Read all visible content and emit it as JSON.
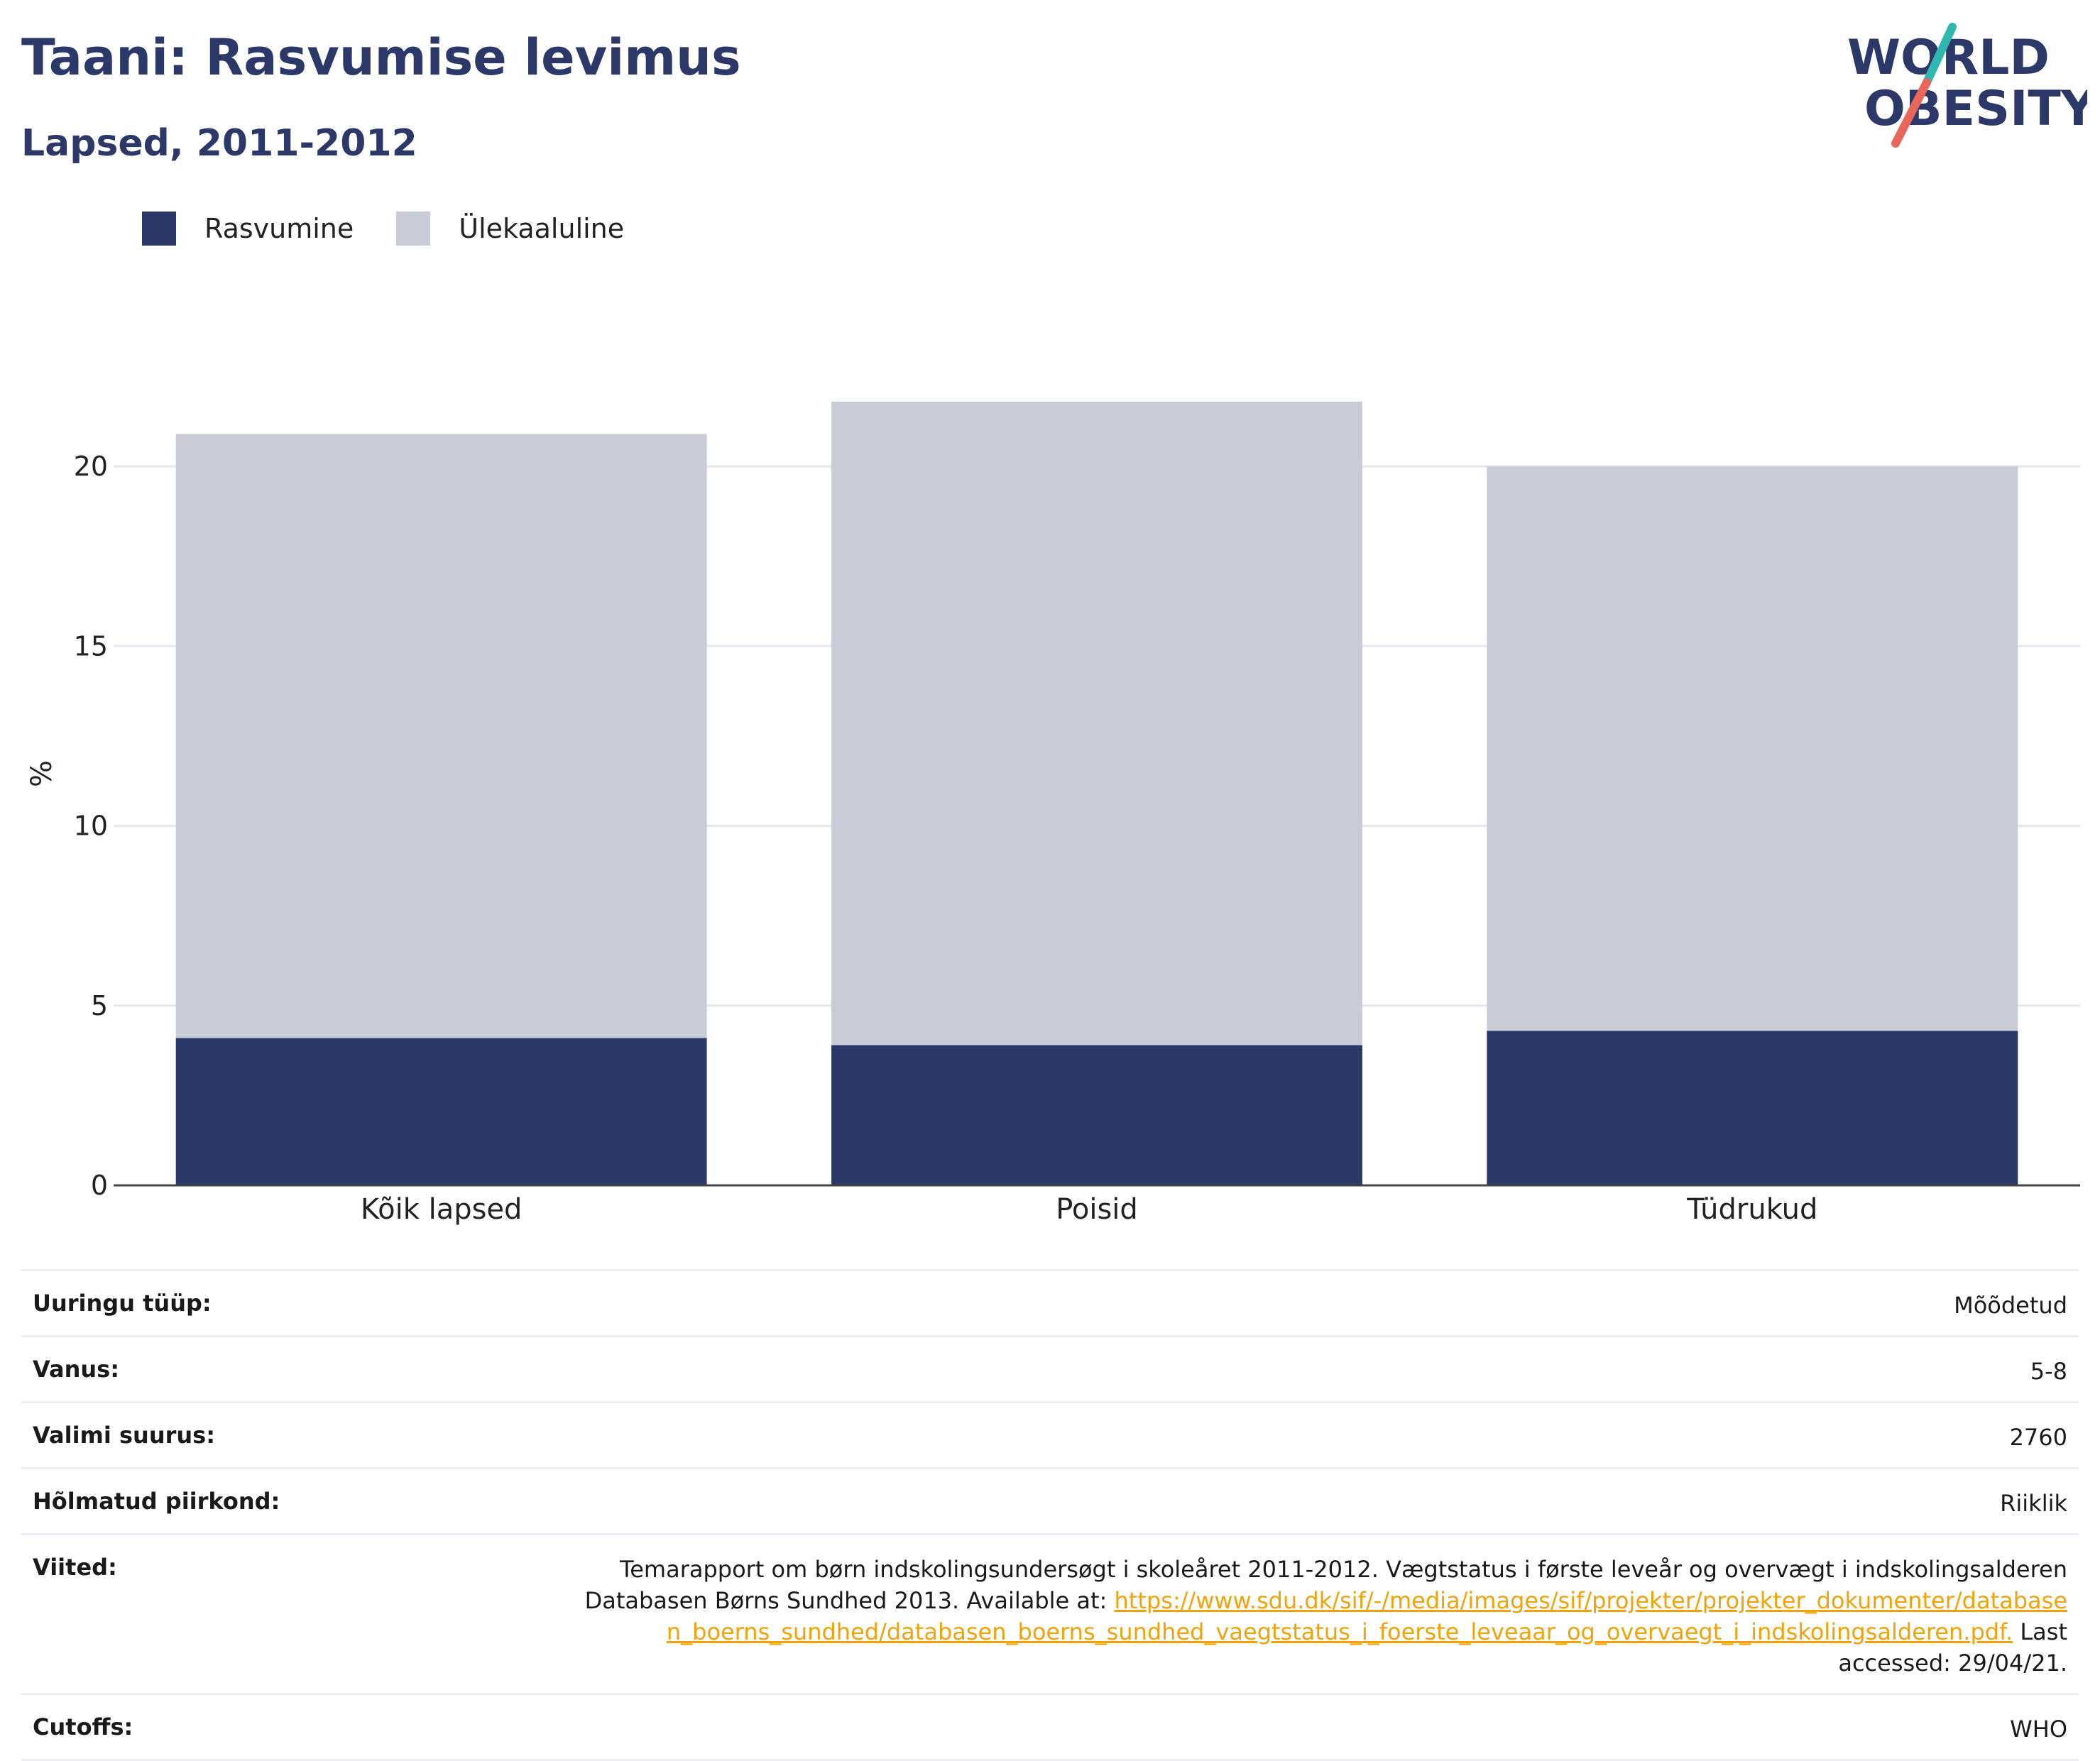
{
  "header": {
    "title": "Taani: Rasvumise levimus",
    "subtitle": "Lapsed, 2011-2012"
  },
  "logo": {
    "line1": "WORLD",
    "line2": "OBESITY",
    "accent_colors": [
      "#2fb7b0",
      "#e8675a"
    ]
  },
  "legend": {
    "items": [
      {
        "label": "Rasvumine",
        "color": "#2b3766"
      },
      {
        "label": "Ülekaaluline",
        "color": "#c9cbd7"
      }
    ]
  },
  "chart_data": {
    "type": "bar",
    "stacked": true,
    "categories": [
      "Kõik lapsed",
      "Poisid",
      "Tüdrukud"
    ],
    "series": [
      {
        "name": "Rasvumine",
        "values": [
          4.1,
          3.9,
          4.3
        ],
        "color": "#2b3766"
      },
      {
        "name": "Ülekaaluline",
        "values": [
          16.8,
          17.9,
          15.7
        ],
        "color": "#c9cbd7"
      }
    ],
    "ylabel": "%",
    "yticks": [
      0,
      5,
      10,
      15,
      20
    ],
    "ylim": [
      0,
      23
    ],
    "grid": true,
    "legend_position": "top-left"
  },
  "meta": {
    "rows": [
      {
        "label": "Uuringu tüüp:",
        "value": "Mõõdetud"
      },
      {
        "label": "Vanus:",
        "value": "5-8"
      },
      {
        "label": "Valimi suurus:",
        "value": "2760"
      },
      {
        "label": "Hõlmatud piirkond:",
        "value": "Riiklik"
      }
    ],
    "refs": {
      "label": "Viited:",
      "text_before": "Temarapport om børn indskolingsundersøgt i skoleåret 2011-2012. Vægtstatus i første leveår og overvægt i indskolingsalderen Databasen Børns Sundhed 2013. Available at: ",
      "link": "https://www.sdu.dk/sif/-/media/images/sif/projekter/projekter_dokumenter/databasen_boerns_sundhed/databasen_boerns_sundhed_vaegtstatus_i_foerste_leveaar_og_overvaegt_i_indskolingsalderen.pdf.",
      "text_after": " Last accessed: 29/04/21."
    },
    "cutoffs": {
      "label": "Cutoffs:",
      "value": "WHO"
    }
  }
}
